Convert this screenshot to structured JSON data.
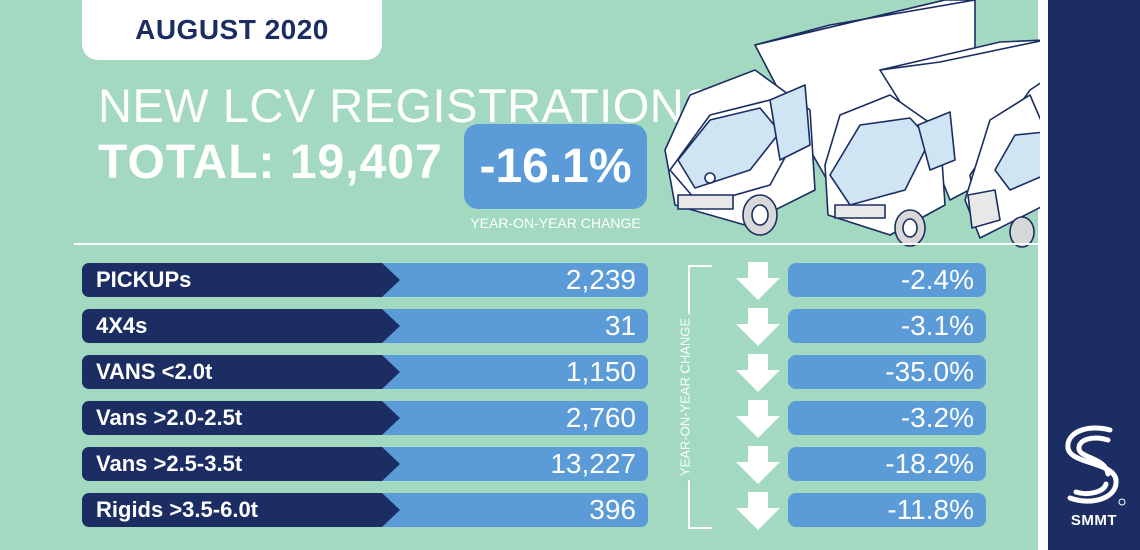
{
  "header": {
    "month": "AUGUST 2020",
    "title": "NEW LCV REGISTRATIONS",
    "total_label": "TOTAL:",
    "total_value": "19,407",
    "change": "-16.1%",
    "change_caption": "YEAR-ON-YEAR CHANGE"
  },
  "side_label": "YEAR-ON-YEAR CHANGE",
  "rows": [
    {
      "label": "PICKUPs",
      "value": "2,239",
      "change": "-2.4%"
    },
    {
      "label": "4X4s",
      "value": "31",
      "change": "-3.1%"
    },
    {
      "label": "VANS <2.0t",
      "value": "1,150",
      "change": "-35.0%"
    },
    {
      "label": "Vans >2.0-2.5t",
      "value": "2,760",
      "change": "-3.2%"
    },
    {
      "label": "Vans >2.5-3.5t",
      "value": "13,227",
      "change": "-18.2%"
    },
    {
      "label": "Rigids >3.5-6.0t",
      "value": "396",
      "change": "-11.8%"
    }
  ],
  "logo": {
    "text": "SMMT"
  },
  "icons": {
    "arrow": "down-arrow-icon",
    "logo": "smmt-logo-icon",
    "vehicles": "lcv-vehicles-illustration"
  },
  "colors": {
    "background": "#a2d9c0",
    "navy": "#1b2d63",
    "blue": "#5b9bd7",
    "white": "#ffffff"
  }
}
